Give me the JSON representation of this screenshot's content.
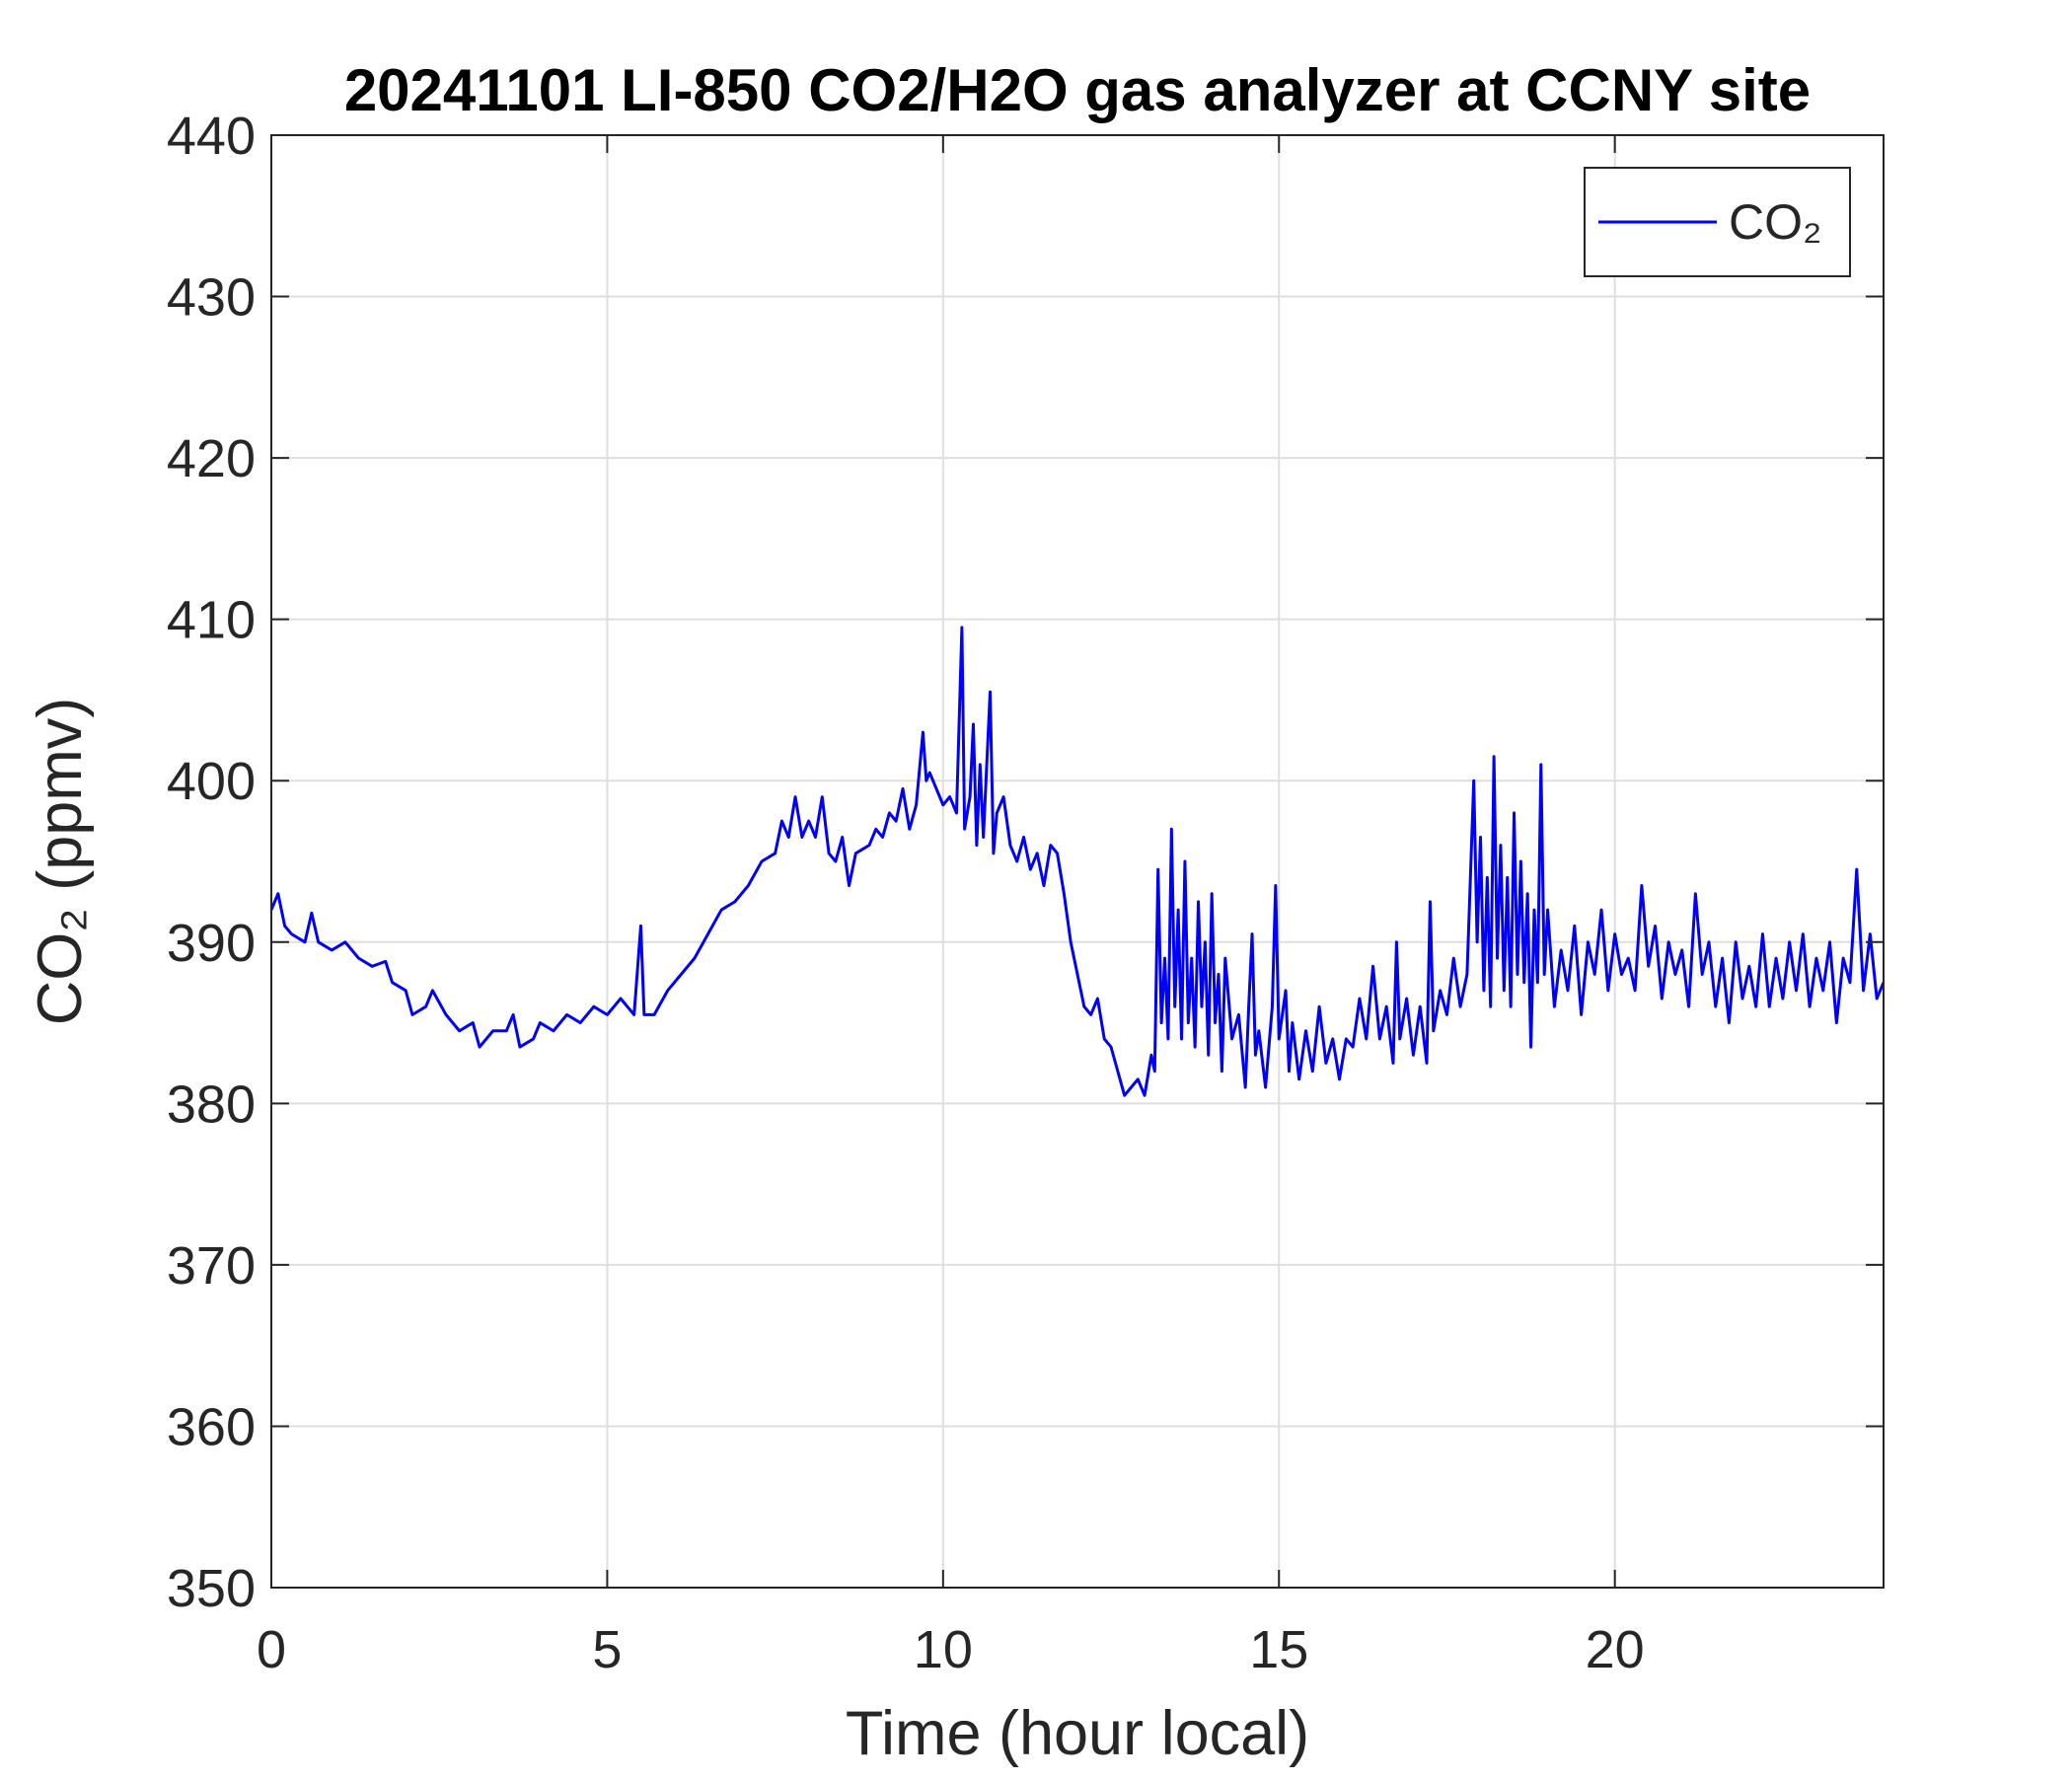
{
  "chart_data": {
    "type": "line",
    "title": "20241101 LI-850 CO2/H2O gas analyzer at CCNY site",
    "x_label": "Time (hour local)",
    "y_label": "CO₂ (ppmv)",
    "xlim": [
      0,
      24
    ],
    "xticks": [
      0,
      5,
      10,
      15,
      20
    ],
    "ylim": [
      350,
      440
    ],
    "yticks": [
      350,
      360,
      370,
      380,
      390,
      400,
      410,
      420,
      430,
      440
    ],
    "grid": true,
    "legend": "upper right",
    "x": [
      0,
      0.1,
      0.2,
      0.3,
      0.5,
      0.6,
      0.7,
      0.9,
      1.1,
      1.3,
      1.5,
      1.7,
      1.8,
      2.0,
      2.1,
      2.3,
      2.4,
      2.6,
      2.8,
      3.0,
      3.1,
      3.3,
      3.5,
      3.6,
      3.7,
      3.9,
      4.0,
      4.2,
      4.4,
      4.6,
      4.8,
      5.0,
      5.2,
      5.4,
      5.5,
      5.55,
      5.7,
      5.9,
      6.1,
      6.3,
      6.5,
      6.7,
      6.9,
      7.1,
      7.3,
      7.5,
      7.6,
      7.7,
      7.8,
      7.9,
      8.0,
      8.1,
      8.2,
      8.3,
      8.4,
      8.5,
      8.6,
      8.7,
      8.9,
      9.0,
      9.1,
      9.2,
      9.3,
      9.4,
      9.5,
      9.6,
      9.7,
      9.75,
      9.8,
      9.9,
      10.0,
      10.1,
      10.2,
      10.28,
      10.32,
      10.4,
      10.45,
      10.5,
      10.55,
      10.6,
      10.65,
      10.7,
      10.75,
      10.8,
      10.9,
      11.0,
      11.1,
      11.2,
      11.3,
      11.4,
      11.5,
      11.6,
      11.7,
      11.8,
      11.9,
      12.0,
      12.1,
      12.2,
      12.3,
      12.4,
      12.5,
      12.6,
      12.7,
      12.8,
      12.9,
      13.0,
      13.1,
      13.15,
      13.2,
      13.25,
      13.3,
      13.35,
      13.4,
      13.45,
      13.5,
      13.55,
      13.6,
      13.65,
      13.7,
      13.75,
      13.8,
      13.85,
      13.9,
      13.95,
      14.0,
      14.05,
      14.1,
      14.15,
      14.2,
      14.3,
      14.4,
      14.5,
      14.55,
      14.6,
      14.65,
      14.7,
      14.8,
      14.9,
      14.95,
      15.0,
      15.1,
      15.15,
      15.2,
      15.3,
      15.4,
      15.5,
      15.6,
      15.7,
      15.8,
      15.9,
      16.0,
      16.1,
      16.2,
      16.3,
      16.4,
      16.5,
      16.6,
      16.7,
      16.75,
      16.8,
      16.9,
      17.0,
      17.1,
      17.2,
      17.25,
      17.3,
      17.4,
      17.5,
      17.6,
      17.7,
      17.8,
      17.9,
      17.95,
      18.0,
      18.05,
      18.1,
      18.15,
      18.2,
      18.25,
      18.3,
      18.35,
      18.4,
      18.45,
      18.5,
      18.55,
      18.6,
      18.65,
      18.7,
      18.75,
      18.8,
      18.85,
      18.9,
      18.95,
      19.0,
      19.1,
      19.2,
      19.3,
      19.4,
      19.5,
      19.6,
      19.7,
      19.8,
      19.9,
      20.0,
      20.1,
      20.2,
      20.3,
      20.4,
      20.5,
      20.6,
      20.7,
      20.8,
      20.9,
      21.0,
      21.1,
      21.2,
      21.3,
      21.4,
      21.5,
      21.6,
      21.7,
      21.8,
      21.9,
      22.0,
      22.1,
      22.2,
      22.3,
      22.4,
      22.5,
      22.6,
      22.7,
      22.8,
      22.9,
      23.0,
      23.1,
      23.2,
      23.3,
      23.4,
      23.5,
      23.6,
      23.7,
      23.8,
      23.9,
      24.0
    ],
    "series": [
      {
        "name": "CO₂",
        "color": "#0000ff",
        "values": [
          392,
          393,
          391,
          390.5,
          390,
          391.8,
          390,
          389.5,
          390,
          389,
          388.5,
          388.8,
          387.5,
          387,
          385.5,
          386,
          387,
          385.5,
          384.5,
          385,
          383.5,
          384.5,
          384.5,
          385.5,
          383.5,
          384,
          385,
          384.5,
          385.5,
          385,
          386,
          385.5,
          386.5,
          385.5,
          391,
          385.5,
          385.5,
          387,
          388,
          389,
          390.5,
          392,
          392.5,
          393.5,
          395,
          395.5,
          397.5,
          396.5,
          399,
          396.5,
          397.5,
          396.5,
          399,
          395.5,
          395,
          396.5,
          393.5,
          395.5,
          396,
          397,
          396.5,
          398,
          397.5,
          399.5,
          397,
          398.5,
          403,
          400,
          400.5,
          399.5,
          398.5,
          399,
          398,
          409.5,
          397,
          399,
          403.5,
          396,
          401,
          396.5,
          401,
          405.5,
          395.5,
          398,
          399,
          396,
          395,
          396.5,
          394.5,
          395.5,
          393.5,
          396,
          395.5,
          393,
          390,
          388,
          386,
          385.5,
          386.5,
          384,
          383.5,
          382,
          380.5,
          381,
          381.5,
          380.5,
          383,
          382,
          394.5,
          385,
          389,
          384,
          397,
          386,
          392,
          384,
          395,
          385,
          389,
          383.5,
          392.5,
          386,
          390,
          383,
          393,
          385,
          388,
          382,
          389,
          384,
          385.5,
          381,
          386,
          390.5,
          383,
          384.5,
          381,
          386,
          393.5,
          384,
          387,
          382,
          385,
          381.5,
          384.5,
          382,
          386,
          382.5,
          384,
          381.5,
          384,
          383.5,
          386.5,
          384,
          388.5,
          384,
          386,
          382.5,
          390,
          384,
          386.5,
          383,
          386,
          382.5,
          392.5,
          384.5,
          387,
          385.5,
          389,
          386,
          388,
          400,
          390,
          396.5,
          387,
          394,
          386,
          401.5,
          389,
          396,
          387,
          394,
          386,
          398,
          388,
          395,
          387.5,
          393,
          383.5,
          392,
          387.5,
          401,
          388,
          392,
          386,
          389.5,
          387,
          391,
          385.5,
          390,
          388,
          392,
          387,
          390.5,
          388,
          389,
          387,
          393.5,
          388.5,
          391,
          386.5,
          390,
          388,
          389.5,
          386,
          393,
          388,
          390,
          386,
          389,
          385,
          390,
          386.5,
          388.5,
          386,
          390.5,
          386,
          389,
          386.5,
          390,
          387,
          390.5,
          386,
          389,
          387,
          390,
          385,
          389,
          387.5,
          394.5,
          387,
          390.5,
          386.5,
          387.5
        ]
      }
    ]
  }
}
